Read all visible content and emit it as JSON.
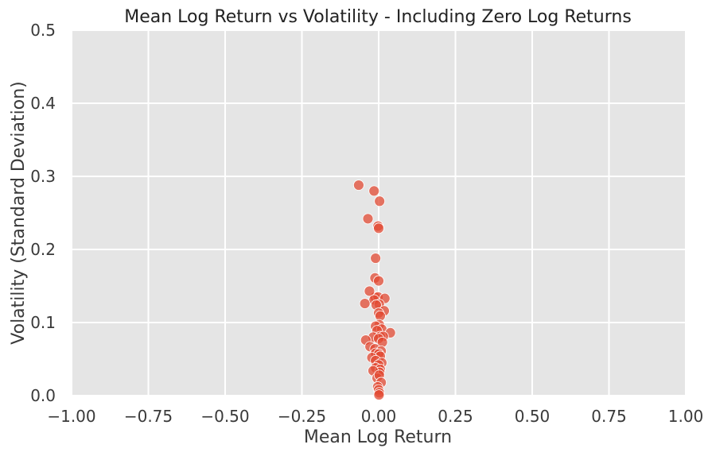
{
  "chart_data": {
    "type": "scatter",
    "title": "Mean Log Return vs Volatility - Including Zero Log Returns",
    "xlabel": "Mean Log Return",
    "ylabel": "Volatility (Standard Deviation)",
    "xlim": [
      -1.0,
      1.0
    ],
    "ylim": [
      0.0,
      0.5
    ],
    "xticks": [
      -1.0,
      -0.75,
      -0.5,
      -0.25,
      0.0,
      0.25,
      0.5,
      0.75,
      1.0
    ],
    "xtick_labels": [
      "−1.00",
      "−0.75",
      "−0.50",
      "−0.25",
      "0.00",
      "0.25",
      "0.50",
      "0.75",
      "1.00"
    ],
    "yticks": [
      0.0,
      0.1,
      0.2,
      0.3,
      0.4,
      0.5
    ],
    "ytick_labels": [
      "0.0",
      "0.1",
      "0.2",
      "0.3",
      "0.4",
      "0.5"
    ],
    "grid": true,
    "colors": {
      "background": "#e5e5e5",
      "grid": "#ffffff",
      "point": "#e24a33"
    },
    "series": [
      {
        "x": [
          -0.065,
          -0.015,
          0.003,
          -0.035,
          -0.002,
          0.0,
          -0.01,
          -0.012,
          0.0,
          -0.012,
          -0.002,
          -0.03,
          -0.015,
          -0.045,
          0.02,
          0.002,
          -0.008,
          0.018,
          0.0,
          0.005,
          0.002,
          -0.01,
          0.01,
          -0.005,
          0.038,
          0.005,
          0.015,
          -0.018,
          0.0,
          -0.042,
          0.012,
          -0.028,
          -0.012,
          0.008,
          -0.01,
          0.0,
          0.005,
          -0.022,
          -0.01,
          0.01,
          0.0,
          -0.01,
          0.005,
          0.003,
          -0.018,
          -0.005,
          0.002,
          0.008,
          -0.003,
          0.0,
          0.002,
          0.001
        ],
        "y": [
          0.288,
          0.28,
          0.266,
          0.242,
          0.232,
          0.229,
          0.188,
          0.161,
          0.157,
          0.135,
          0.135,
          0.143,
          0.131,
          0.126,
          0.133,
          0.125,
          0.124,
          0.116,
          0.113,
          0.109,
          0.097,
          0.095,
          0.091,
          0.089,
          0.086,
          0.081,
          0.081,
          0.08,
          0.078,
          0.076,
          0.073,
          0.067,
          0.064,
          0.061,
          0.058,
          0.057,
          0.054,
          0.052,
          0.048,
          0.045,
          0.042,
          0.038,
          0.036,
          0.032,
          0.034,
          0.024,
          0.028,
          0.018,
          0.012,
          0.008,
          0.004,
          0.001
        ]
      }
    ]
  }
}
